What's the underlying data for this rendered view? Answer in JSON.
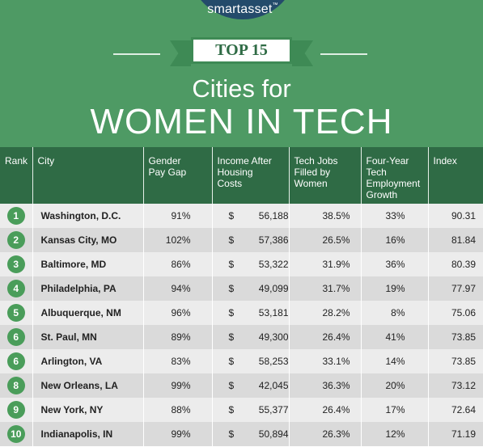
{
  "brand": {
    "name": "smartasset",
    "tm": "™"
  },
  "badge": {
    "label": "TOP 15"
  },
  "title": {
    "line1": "Cities for",
    "line2": "WOMEN IN TECH"
  },
  "colors": {
    "header_bg": "#4e9a64",
    "table_header_bg": "#2f6b45",
    "rank_circle": "#4a9d5a",
    "logo_bg": "#244b6b"
  },
  "table": {
    "headers": {
      "rank": "Rank",
      "city": "City",
      "pay_gap": [
        "Gender",
        "Pay Gap"
      ],
      "income": [
        "Income After",
        "Housing",
        "Costs"
      ],
      "tech_jobs": [
        "Tech Jobs",
        "Filled by",
        "Women"
      ],
      "growth": [
        "Four-Year",
        "Tech",
        "Employment",
        "Growth"
      ],
      "index": "Index"
    },
    "rows": [
      {
        "rank": "1",
        "city": "Washington, D.C.",
        "pay_gap": "91%",
        "dollar": "$",
        "income": "56,188",
        "tech_jobs": "38.5%",
        "growth": "33%",
        "index": "90.31"
      },
      {
        "rank": "2",
        "city": "Kansas City, MO",
        "pay_gap": "102%",
        "dollar": "$",
        "income": "57,386",
        "tech_jobs": "26.5%",
        "growth": "16%",
        "index": "81.84"
      },
      {
        "rank": "3",
        "city": "Baltimore, MD",
        "pay_gap": "86%",
        "dollar": "$",
        "income": "53,322",
        "tech_jobs": "31.9%",
        "growth": "36%",
        "index": "80.39"
      },
      {
        "rank": "4",
        "city": "Philadelphia, PA",
        "pay_gap": "94%",
        "dollar": "$",
        "income": "49,099",
        "tech_jobs": "31.7%",
        "growth": "19%",
        "index": "77.97"
      },
      {
        "rank": "5",
        "city": "Albuquerque, NM",
        "pay_gap": "96%",
        "dollar": "$",
        "income": "53,181",
        "tech_jobs": "28.2%",
        "growth": "8%",
        "index": "75.06"
      },
      {
        "rank": "6",
        "city": "St. Paul, MN",
        "pay_gap": "89%",
        "dollar": "$",
        "income": "49,300",
        "tech_jobs": "26.4%",
        "growth": "41%",
        "index": "73.85"
      },
      {
        "rank": "6",
        "city": "Arlington, VA",
        "pay_gap": "83%",
        "dollar": "$",
        "income": "58,253",
        "tech_jobs": "33.1%",
        "growth": "14%",
        "index": "73.85"
      },
      {
        "rank": "8",
        "city": "New Orleans, LA",
        "pay_gap": "99%",
        "dollar": "$",
        "income": "42,045",
        "tech_jobs": "36.3%",
        "growth": "20%",
        "index": "73.12"
      },
      {
        "rank": "9",
        "city": "New York, NY",
        "pay_gap": "88%",
        "dollar": "$",
        "income": "55,377",
        "tech_jobs": "26.4%",
        "growth": "17%",
        "index": "72.64"
      },
      {
        "rank": "10",
        "city": "Indianapolis, IN",
        "pay_gap": "99%",
        "dollar": "$",
        "income": "50,894",
        "tech_jobs": "26.3%",
        "growth": "12%",
        "index": "71.19"
      }
    ]
  }
}
